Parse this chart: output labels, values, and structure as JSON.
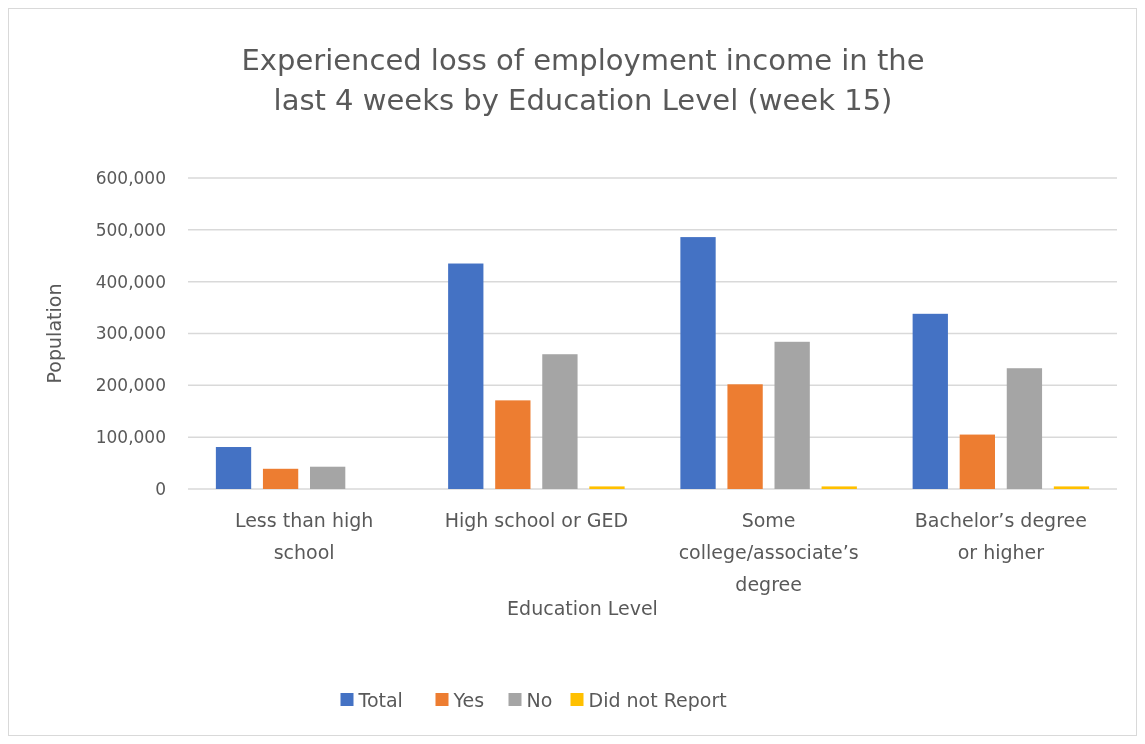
{
  "chart_data": {
    "type": "bar",
    "title": "Experienced loss of employment income in the last 4 weeks by Education Level (week 15)",
    "xlabel": "Education Level",
    "ylabel": "Population",
    "categories": [
      "Less than high school",
      "High school or GED",
      "Some college/associate’s degree",
      "Bachelor’s degree or higher"
    ],
    "series": [
      {
        "name": "Total",
        "color": "#4472c4",
        "values": [
          81000,
          435000,
          486000,
          338000
        ]
      },
      {
        "name": "Yes",
        "color": "#ed7d31",
        "values": [
          39000,
          171000,
          202000,
          105000
        ]
      },
      {
        "name": "No",
        "color": "#a5a5a5",
        "values": [
          43000,
          260000,
          284000,
          233000
        ]
      },
      {
        "name": "Did not Report",
        "color": "#ffc000",
        "values": [
          0,
          5000,
          5000,
          5000
        ]
      }
    ],
    "ylim": [
      0,
      600000
    ],
    "yticks": [
      {
        "value": 0,
        "label": "0"
      },
      {
        "value": 100000,
        "label": "100,000"
      },
      {
        "value": 200000,
        "label": "200,000"
      },
      {
        "value": 300000,
        "label": "300,000"
      },
      {
        "value": 400000,
        "label": "400,000"
      },
      {
        "value": 500000,
        "label": "500,000"
      },
      {
        "value": 600000,
        "label": "600,000"
      }
    ],
    "grid": "y",
    "legend": "bottom"
  }
}
